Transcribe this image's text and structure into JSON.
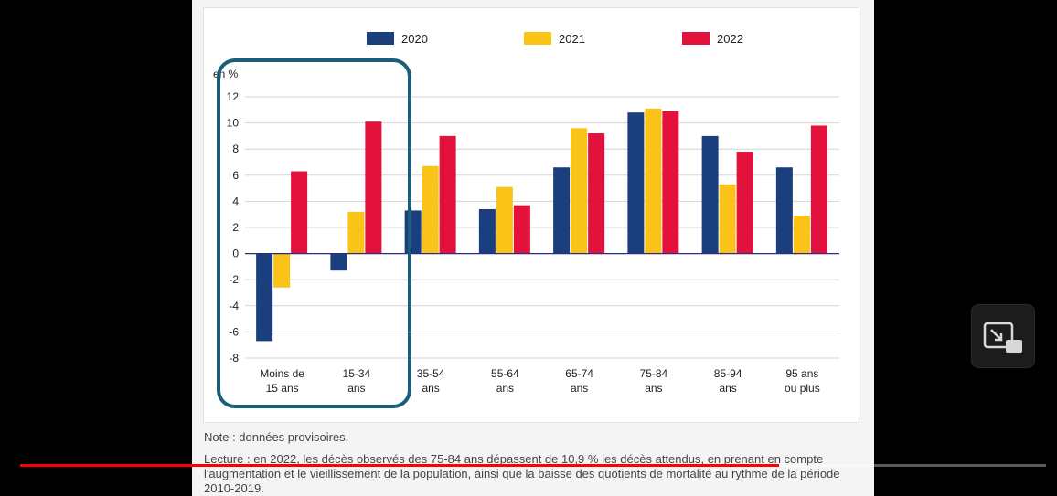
{
  "chart_data": {
    "type": "bar",
    "ylabel": "en %",
    "ylim": [
      -8,
      12
    ],
    "yticks": [
      12,
      10,
      8,
      6,
      4,
      2,
      0,
      -2,
      -4,
      -6,
      -8
    ],
    "grid": true,
    "legend_position": "top",
    "categories": [
      "Moins de 15 ans",
      "15-34 ans",
      "35-54 ans",
      "55-64 ans",
      "65-74 ans",
      "75-84 ans",
      "85-94 ans",
      "95 ans ou plus"
    ],
    "category_lines": [
      [
        "Moins de",
        "15 ans"
      ],
      [
        "15-34",
        "ans"
      ],
      [
        "35-54",
        "ans"
      ],
      [
        "55-64",
        "ans"
      ],
      [
        "65-74",
        "ans"
      ],
      [
        "75-84",
        "ans"
      ],
      [
        "85-94",
        "ans"
      ],
      [
        "95 ans",
        "ou plus"
      ]
    ],
    "series": [
      {
        "name": "2020",
        "color": "#1b3f7e",
        "values": [
          -6.7,
          -1.3,
          3.3,
          3.4,
          6.6,
          10.8,
          9.0,
          6.6
        ]
      },
      {
        "name": "2021",
        "color": "#f9c318",
        "values": [
          -2.6,
          3.2,
          6.7,
          5.1,
          9.6,
          11.1,
          5.3,
          2.9
        ]
      },
      {
        "name": "2022",
        "color": "#e2123d",
        "values": [
          6.3,
          10.1,
          9.0,
          3.7,
          9.2,
          10.9,
          7.8,
          9.8
        ]
      }
    ]
  },
  "notes": {
    "note": "Note : données provisoires.",
    "lecture": "Lecture : en 2022, les décès observés des 75-84 ans dépassent de 10,9 % les décès attendus, en prenant en compte l'augmentation et le vieillissement de la population, ainsi que la baisse des quotients de mortalité au rythme de la période 2010-2019."
  },
  "player": {
    "progress": 0.74,
    "progress_color": "#ff0000",
    "highlight_color": "#1b5e7a",
    "pip_icon": "picture-in-picture-icon"
  }
}
